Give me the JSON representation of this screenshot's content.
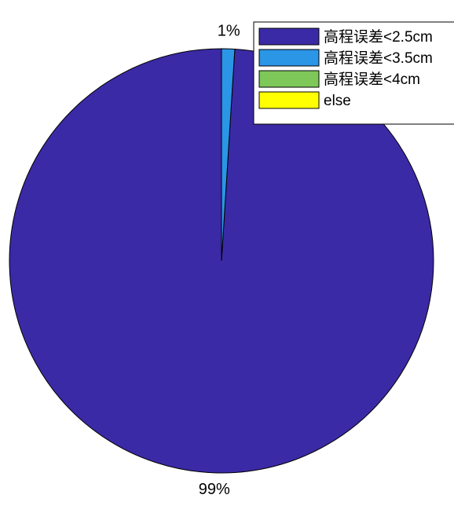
{
  "chart_data": {
    "type": "pie",
    "title": "",
    "categories": [
      "高程误差<2.5cm",
      "高程误差<3.5cm",
      "高程误差<4cm",
      "else"
    ],
    "values": [
      99,
      1,
      0,
      0
    ],
    "data_labels": [
      "99%",
      "1%",
      "",
      ""
    ],
    "colors": [
      "#3b2aa6",
      "#2b95e6",
      "#7ec85a",
      "#ffff00"
    ],
    "start_angle_deg": 0,
    "direction": "clockwise",
    "legend": {
      "position": "top-right",
      "entries": [
        "高程误差<2.5cm",
        "高程误差<3.5cm",
        "高程误差<4cm",
        "else"
      ]
    }
  }
}
